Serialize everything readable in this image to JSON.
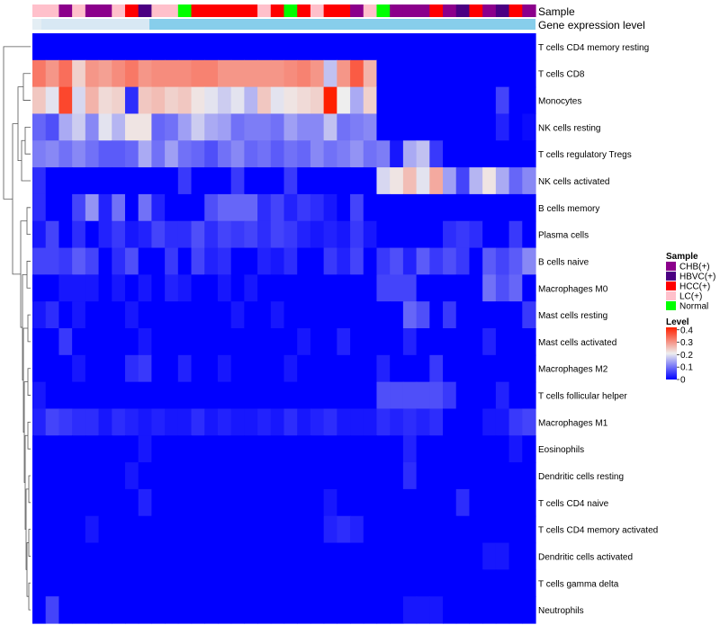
{
  "chart_data": {
    "type": "heatmap",
    "title": "",
    "annotation_tracks": [
      "Sample",
      "Gene expression level"
    ],
    "sample_groups": [
      "CHB(+)",
      "HBVC(+)",
      "HCC(+)",
      "LC(+)",
      "Normal"
    ],
    "group_colors": {
      "CHB(+)": "#8B008B",
      "HBVC(+)": "#4B0082",
      "HCC(+)": "#FF0000",
      "LC(+)": "#FFC0CB",
      "Normal": "#00FF00"
    },
    "columns": [
      "LC(+)",
      "LC(+)",
      "CHB(+)",
      "LC(+)",
      "CHB(+)",
      "CHB(+)",
      "LC(+)",
      "HCC(+)",
      "HBVC(+)",
      "LC(+)",
      "LC(+)",
      "Normal",
      "HCC(+)",
      "HCC(+)",
      "HCC(+)",
      "HCC(+)",
      "HCC(+)",
      "LC(+)",
      "HCC(+)",
      "Normal",
      "HCC(+)",
      "LC(+)",
      "HCC(+)",
      "HCC(+)",
      "CHB(+)",
      "LC(+)",
      "Normal",
      "CHB(+)",
      "CHB(+)",
      "CHB(+)",
      "HCC(+)",
      "CHB(+)",
      "HBVC(+)",
      "HCC(+)",
      "CHB(+)",
      "HBVC(+)",
      "HCC(+)",
      "CHB(+)"
    ],
    "rows": [
      "T cells CD4 memory resting",
      "T cells CD8",
      "Monocytes",
      "NK cells resting",
      "T cells regulatory  Tregs",
      "NK cells activated",
      "B cells memory",
      "Plasma cells",
      "B cells naive",
      "Macrophages M0",
      "Mast cells resting",
      "Mast cells activated",
      "Macrophages M2",
      "T cells follicular helper",
      "Macrophages M1",
      "Eosinophils",
      "Dendritic cells resting",
      "T cells CD4 naive",
      "T cells CD4 memory activated",
      "Dendritic cells activated",
      "T cells gamma delta",
      "Neutrophils"
    ],
    "legend": {
      "sample_title": "Sample",
      "level_title": "Level",
      "level_ticks": [
        "0.4",
        "0.3",
        "0.2",
        "0.1",
        "0"
      ],
      "range": [
        0,
        0.42
      ]
    },
    "values": [
      [
        0.0,
        0.0,
        0.0,
        0.0,
        0.0,
        0.0,
        0.0,
        0.0,
        0.0,
        0.0,
        0.0,
        0.0,
        0.0,
        0.0,
        0.0,
        0.0,
        0.0,
        0.0,
        0.0,
        0.0,
        0.0,
        0.0,
        0.0,
        0.0,
        0.0,
        0.0,
        0.0,
        0.0,
        0.0,
        0.0,
        0.0,
        0.0,
        0.0,
        0.0,
        0.0,
        0.0,
        0.0,
        0.0
      ],
      [
        0.33,
        0.3,
        0.34,
        0.24,
        0.3,
        0.29,
        0.31,
        0.33,
        0.3,
        0.31,
        0.31,
        0.31,
        0.32,
        0.32,
        0.3,
        0.3,
        0.3,
        0.3,
        0.3,
        0.31,
        0.32,
        0.3,
        0.17,
        0.3,
        0.36,
        0.27,
        0.0,
        0.0,
        0.0,
        0.0,
        0.0,
        0.0,
        0.0,
        0.0,
        0.0,
        0.0,
        0.0,
        0.0
      ],
      [
        0.25,
        0.2,
        0.38,
        0.19,
        0.27,
        0.23,
        0.24,
        0.04,
        0.25,
        0.26,
        0.24,
        0.25,
        0.22,
        0.2,
        0.18,
        0.2,
        0.16,
        0.25,
        0.2,
        0.22,
        0.23,
        0.24,
        0.42,
        0.21,
        0.15,
        0.24,
        0.0,
        0.0,
        0.0,
        0.0,
        0.0,
        0.0,
        0.0,
        0.0,
        0.0,
        0.06,
        0.0,
        0.0
      ],
      [
        0.09,
        0.07,
        0.15,
        0.18,
        0.12,
        0.2,
        0.16,
        0.22,
        0.22,
        0.09,
        0.1,
        0.14,
        0.18,
        0.15,
        0.14,
        0.1,
        0.11,
        0.11,
        0.1,
        0.14,
        0.12,
        0.12,
        0.17,
        0.1,
        0.11,
        0.12,
        0.0,
        0.0,
        0.0,
        0.0,
        0.0,
        0.0,
        0.0,
        0.0,
        0.0,
        0.03,
        0.0,
        0.01
      ],
      [
        0.11,
        0.12,
        0.1,
        0.12,
        0.1,
        0.08,
        0.08,
        0.09,
        0.15,
        0.1,
        0.14,
        0.1,
        0.09,
        0.07,
        0.1,
        0.12,
        0.09,
        0.1,
        0.08,
        0.1,
        0.09,
        0.12,
        0.1,
        0.11,
        0.13,
        0.1,
        0.11,
        0.02,
        0.15,
        0.17,
        0.05,
        0.0,
        0.0,
        0.0,
        0.0,
        0.0,
        0.0,
        0.0
      ],
      [
        0.04,
        0.0,
        0.0,
        0.0,
        0.0,
        0.0,
        0.0,
        0.0,
        0.0,
        0.0,
        0.0,
        0.05,
        0.0,
        0.0,
        0.0,
        0.05,
        0.0,
        0.0,
        0.0,
        0.05,
        0.0,
        0.0,
        0.0,
        0.0,
        0.0,
        0.0,
        0.19,
        0.22,
        0.26,
        0.2,
        0.28,
        0.14,
        0.06,
        0.16,
        0.22,
        0.15,
        0.09,
        0.12
      ],
      [
        0.04,
        0.0,
        0.0,
        0.06,
        0.13,
        0.03,
        0.1,
        0.0,
        0.1,
        0.03,
        0.0,
        0.0,
        0.0,
        0.07,
        0.09,
        0.09,
        0.09,
        0.04,
        0.06,
        0.03,
        0.05,
        0.04,
        0.02,
        0.0,
        0.06,
        0.0,
        0.0,
        0.0,
        0.0,
        0.0,
        0.0,
        0.0,
        0.0,
        0.0,
        0.0,
        0.0,
        0.0,
        0.0
      ],
      [
        0.02,
        0.06,
        0.0,
        0.04,
        0.0,
        0.03,
        0.05,
        0.02,
        0.03,
        0.06,
        0.04,
        0.04,
        0.07,
        0.04,
        0.06,
        0.05,
        0.06,
        0.04,
        0.06,
        0.05,
        0.03,
        0.02,
        0.03,
        0.02,
        0.05,
        0.02,
        0.0,
        0.0,
        0.0,
        0.0,
        0.0,
        0.04,
        0.05,
        0.04,
        0.0,
        0.0,
        0.05,
        0.0
      ],
      [
        0.06,
        0.06,
        0.05,
        0.08,
        0.06,
        0.0,
        0.04,
        0.07,
        0.0,
        0.0,
        0.05,
        0.0,
        0.06,
        0.03,
        0.04,
        0.0,
        0.0,
        0.03,
        0.02,
        0.04,
        0.0,
        0.0,
        0.05,
        0.03,
        0.06,
        0.0,
        0.05,
        0.07,
        0.03,
        0.08,
        0.05,
        0.07,
        0.05,
        0.0,
        0.08,
        0.06,
        0.08,
        0.12
      ],
      [
        0.0,
        0.0,
        0.02,
        0.02,
        0.02,
        0.0,
        0.02,
        0.0,
        0.02,
        0.0,
        0.03,
        0.02,
        0.0,
        0.0,
        0.02,
        0.0,
        0.02,
        0.0,
        0.0,
        0.0,
        0.0,
        0.0,
        0.0,
        0.0,
        0.0,
        0.0,
        0.06,
        0.06,
        0.06,
        0.0,
        0.0,
        0.0,
        0.0,
        0.0,
        0.1,
        0.07,
        0.09,
        0.0
      ],
      [
        0.02,
        0.04,
        0.0,
        0.02,
        0.0,
        0.0,
        0.0,
        0.02,
        0.0,
        0.0,
        0.0,
        0.0,
        0.0,
        0.0,
        0.0,
        0.02,
        0.0,
        0.0,
        0.02,
        0.0,
        0.0,
        0.0,
        0.0,
        0.0,
        0.0,
        0.0,
        0.0,
        0.0,
        0.09,
        0.07,
        0.0,
        0.05,
        0.0,
        0.0,
        0.0,
        0.0,
        0.0,
        0.05
      ],
      [
        0.0,
        0.0,
        0.05,
        0.0,
        0.0,
        0.0,
        0.0,
        0.0,
        0.02,
        0.0,
        0.0,
        0.0,
        0.0,
        0.0,
        0.0,
        0.0,
        0.0,
        0.0,
        0.0,
        0.0,
        0.02,
        0.0,
        0.0,
        0.03,
        0.0,
        0.0,
        0.0,
        0.0,
        0.03,
        0.0,
        0.0,
        0.0,
        0.0,
        0.0,
        0.03,
        0.0,
        0.0,
        0.0
      ],
      [
        0.0,
        0.0,
        0.0,
        0.02,
        0.0,
        0.0,
        0.0,
        0.04,
        0.05,
        0.0,
        0.0,
        0.03,
        0.0,
        0.0,
        0.02,
        0.0,
        0.0,
        0.0,
        0.0,
        0.02,
        0.0,
        0.0,
        0.0,
        0.0,
        0.0,
        0.0,
        0.03,
        0.0,
        0.0,
        0.0,
        0.05,
        0.0,
        0.0,
        0.0,
        0.0,
        0.0,
        0.0,
        0.0
      ],
      [
        0.02,
        0.0,
        0.0,
        0.0,
        0.0,
        0.0,
        0.0,
        0.0,
        0.0,
        0.0,
        0.0,
        0.0,
        0.0,
        0.0,
        0.0,
        0.0,
        0.0,
        0.0,
        0.0,
        0.0,
        0.0,
        0.0,
        0.0,
        0.0,
        0.0,
        0.0,
        0.07,
        0.07,
        0.07,
        0.07,
        0.07,
        0.05,
        0.0,
        0.0,
        0.0,
        0.03,
        0.0,
        0.0
      ],
      [
        0.03,
        0.06,
        0.05,
        0.04,
        0.04,
        0.02,
        0.04,
        0.03,
        0.02,
        0.03,
        0.02,
        0.02,
        0.04,
        0.02,
        0.03,
        0.02,
        0.02,
        0.03,
        0.02,
        0.04,
        0.02,
        0.03,
        0.04,
        0.02,
        0.02,
        0.02,
        0.04,
        0.03,
        0.04,
        0.03,
        0.04,
        0.0,
        0.0,
        0.0,
        0.02,
        0.02,
        0.05,
        0.06
      ],
      [
        0.0,
        0.0,
        0.0,
        0.0,
        0.0,
        0.0,
        0.0,
        0.0,
        0.02,
        0.0,
        0.0,
        0.0,
        0.0,
        0.0,
        0.0,
        0.0,
        0.0,
        0.0,
        0.0,
        0.0,
        0.0,
        0.0,
        0.0,
        0.0,
        0.0,
        0.0,
        0.0,
        0.0,
        0.03,
        0.0,
        0.0,
        0.0,
        0.0,
        0.0,
        0.0,
        0.0,
        0.02,
        0.0
      ],
      [
        0.0,
        0.0,
        0.0,
        0.0,
        0.0,
        0.0,
        0.0,
        0.02,
        0.0,
        0.0,
        0.0,
        0.0,
        0.0,
        0.0,
        0.0,
        0.0,
        0.0,
        0.0,
        0.0,
        0.0,
        0.0,
        0.0,
        0.0,
        0.0,
        0.0,
        0.0,
        0.0,
        0.0,
        0.04,
        0.0,
        0.0,
        0.0,
        0.0,
        0.0,
        0.0,
        0.0,
        0.0,
        0.0
      ],
      [
        0.0,
        0.0,
        0.0,
        0.0,
        0.0,
        0.0,
        0.0,
        0.0,
        0.03,
        0.0,
        0.0,
        0.0,
        0.0,
        0.0,
        0.0,
        0.0,
        0.0,
        0.0,
        0.0,
        0.0,
        0.0,
        0.0,
        0.02,
        0.0,
        0.0,
        0.0,
        0.0,
        0.0,
        0.0,
        0.0,
        0.0,
        0.0,
        0.04,
        0.0,
        0.0,
        0.0,
        0.0,
        0.0
      ],
      [
        0.0,
        0.0,
        0.0,
        0.0,
        0.02,
        0.0,
        0.0,
        0.0,
        0.0,
        0.0,
        0.0,
        0.0,
        0.0,
        0.0,
        0.0,
        0.0,
        0.0,
        0.0,
        0.0,
        0.0,
        0.0,
        0.0,
        0.03,
        0.04,
        0.03,
        0.0,
        0.0,
        0.0,
        0.0,
        0.0,
        0.0,
        0.0,
        0.0,
        0.0,
        0.0,
        0.0,
        0.0,
        0.0
      ],
      [
        0.0,
        0.0,
        0.0,
        0.0,
        0.0,
        0.0,
        0.0,
        0.0,
        0.0,
        0.0,
        0.0,
        0.0,
        0.0,
        0.0,
        0.0,
        0.0,
        0.0,
        0.0,
        0.0,
        0.0,
        0.0,
        0.0,
        0.0,
        0.0,
        0.0,
        0.0,
        0.0,
        0.0,
        0.0,
        0.0,
        0.0,
        0.0,
        0.0,
        0.0,
        0.02,
        0.02,
        0.0,
        0.0
      ],
      [
        0.0,
        0.0,
        0.0,
        0.0,
        0.0,
        0.0,
        0.0,
        0.0,
        0.0,
        0.0,
        0.0,
        0.0,
        0.0,
        0.0,
        0.0,
        0.0,
        0.0,
        0.0,
        0.0,
        0.0,
        0.0,
        0.0,
        0.0,
        0.0,
        0.0,
        0.0,
        0.0,
        0.0,
        0.0,
        0.0,
        0.0,
        0.0,
        0.0,
        0.0,
        0.0,
        0.0,
        0.0,
        0.0
      ],
      [
        0.0,
        0.06,
        0.0,
        0.0,
        0.0,
        0.0,
        0.0,
        0.0,
        0.0,
        0.0,
        0.0,
        0.0,
        0.0,
        0.0,
        0.0,
        0.0,
        0.0,
        0.0,
        0.0,
        0.0,
        0.0,
        0.0,
        0.0,
        0.0,
        0.0,
        0.0,
        0.0,
        0.0,
        0.02,
        0.02,
        0.02,
        0.0,
        0.0,
        0.0,
        0.0,
        0.0,
        0.0,
        0.0
      ]
    ],
    "x_axis": {
      "label": "",
      "ticks": []
    },
    "y_axis": {
      "label": ""
    }
  }
}
